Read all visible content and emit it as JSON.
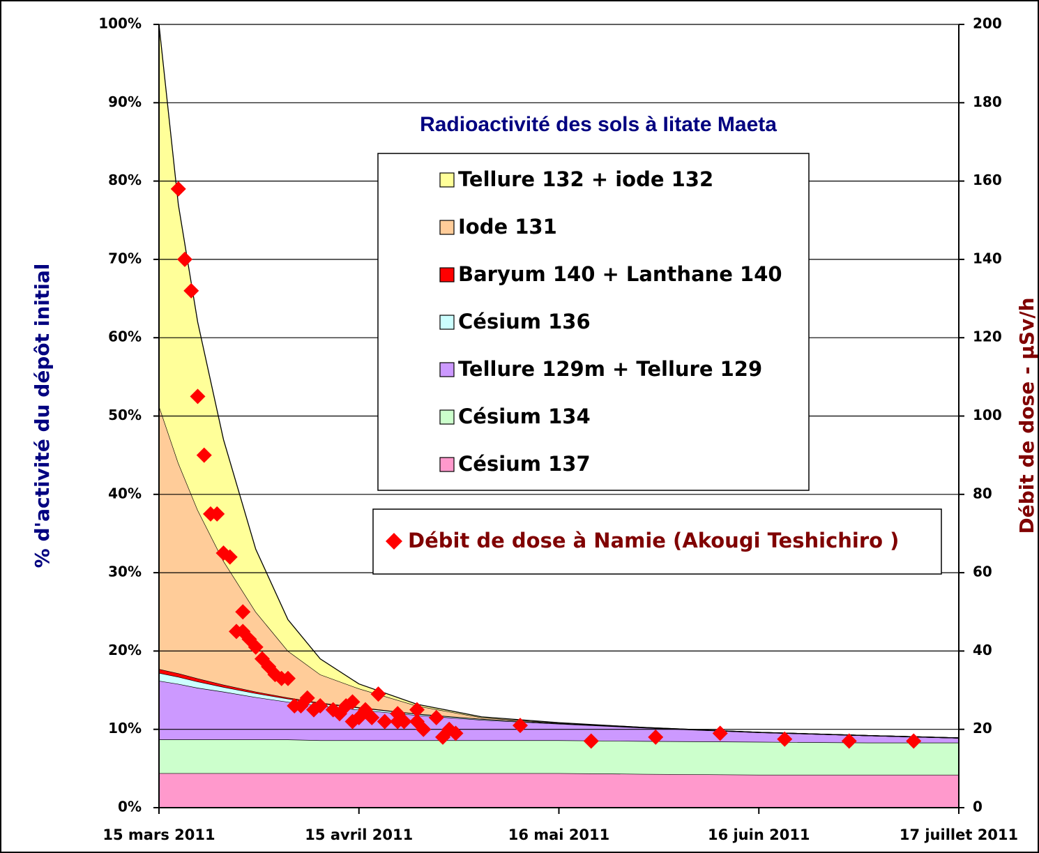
{
  "chart_data": {
    "type": "stacked_area",
    "title": "Radioactivité des sols à Iitate Maeta",
    "ylabel": "% d'activité du dépôt initial",
    "y2label": "Débit de dose - µSv/h",
    "xlim": [
      "2011-03-15",
      "2011-07-17"
    ],
    "xticks": [
      {
        "value": "2011-03-15",
        "label": "15 mars 2011"
      },
      {
        "value": "2011-04-15",
        "label": "15 avril 2011"
      },
      {
        "value": "2011-05-16",
        "label": "16 mai 2011"
      },
      {
        "value": "2011-06-16",
        "label": "16 juin 2011"
      },
      {
        "value": "2011-07-17",
        "label": "17 juillet 2011"
      }
    ],
    "ylim": [
      0,
      100
    ],
    "yticks": [
      {
        "value": 0,
        "label": "0%"
      },
      {
        "value": 10,
        "label": "10%"
      },
      {
        "value": 20,
        "label": "20%"
      },
      {
        "value": 30,
        "label": "30%"
      },
      {
        "value": 40,
        "label": "40%"
      },
      {
        "value": 50,
        "label": "50%"
      },
      {
        "value": 60,
        "label": "60%"
      },
      {
        "value": 70,
        "label": "70%"
      },
      {
        "value": 80,
        "label": "80%"
      },
      {
        "value": 90,
        "label": "90%"
      },
      {
        "value": 100,
        "label": "100%"
      }
    ],
    "y2lim": [
      0,
      200
    ],
    "y2ticks": [
      0,
      20,
      40,
      60,
      80,
      100,
      120,
      140,
      160,
      180,
      200
    ],
    "grid": true,
    "x": [
      "2011-03-15",
      "2011-03-18",
      "2011-03-21",
      "2011-03-25",
      "2011-03-30",
      "2011-04-04",
      "2011-04-09",
      "2011-04-15",
      "2011-04-24",
      "2011-05-04",
      "2011-05-16",
      "2011-05-29",
      "2011-06-16",
      "2011-07-03",
      "2011-07-17"
    ],
    "series": [
      {
        "name": "Césium 137",
        "color": "#ff99cc",
        "values": [
          4.4,
          4.4,
          4.4,
          4.4,
          4.4,
          4.4,
          4.4,
          4.4,
          4.4,
          4.4,
          4.4,
          4.3,
          4.2,
          4.2,
          4.2
        ]
      },
      {
        "name": "Césium 134",
        "color": "#ccffcc",
        "values": [
          4.3,
          4.3,
          4.3,
          4.3,
          4.3,
          4.3,
          4.2,
          4.2,
          4.2,
          4.2,
          4.2,
          4.2,
          4.2,
          4.1,
          4.1
        ]
      },
      {
        "name": "Tellure 129m + Tellure 129",
        "color": "#cc99ff",
        "values": [
          7.5,
          7.1,
          6.6,
          6.1,
          5.4,
          4.8,
          4.4,
          3.9,
          3.2,
          2.6,
          2.1,
          1.7,
          1.2,
          0.9,
          0.6
        ]
      },
      {
        "name": "Césium 136",
        "color": "#ccffff",
        "values": [
          1.0,
          0.9,
          0.8,
          0.6,
          0.5,
          0.4,
          0.3,
          0.25,
          0.15,
          0.1,
          0.05,
          0.02,
          0.01,
          0,
          0
        ]
      },
      {
        "name": "Baryum 140 + Lanthane 140",
        "color": "#ff0000",
        "values": [
          0.5,
          0.45,
          0.4,
          0.3,
          0.2,
          0.15,
          0.1,
          0.07,
          0.04,
          0.03,
          0.01,
          0,
          0,
          0,
          0
        ]
      },
      {
        "name": "Iode 131",
        "color": "#ffcc99",
        "values": [
          33.6,
          26.85,
          21.5,
          15.8,
          10.2,
          5.95,
          3.6,
          2.38,
          1.01,
          0.17,
          0.04,
          0.03,
          0.01,
          0,
          0
        ]
      },
      {
        "name": "Tellure 132 + iode 132",
        "color": "#ffff99",
        "values": [
          48.7,
          33,
          24,
          15.5,
          8,
          4,
          2,
          0.6,
          0.2,
          0.1,
          0.05,
          0,
          0,
          0,
          0
        ]
      }
    ],
    "scatter": {
      "type": "scatter",
      "name": "Débit de dose à Namie (Akougi Teshichiro )",
      "color": "#ff0000",
      "axis": "y2",
      "x": [
        "2011-03-18",
        "2011-03-19",
        "2011-03-20",
        "2011-03-21",
        "2011-03-22",
        "2011-03-23",
        "2011-03-24",
        "2011-03-25",
        "2011-03-26",
        "2011-03-28",
        "2011-03-27",
        "2011-03-28",
        "2011-03-29",
        "2011-03-30",
        "2011-03-31",
        "2011-04-01",
        "2011-04-02",
        "2011-04-03",
        "2011-04-04",
        "2011-04-05",
        "2011-04-06",
        "2011-04-07",
        "2011-04-08",
        "2011-04-09",
        "2011-04-11",
        "2011-04-12",
        "2011-04-13",
        "2011-04-14",
        "2011-04-14",
        "2011-04-15",
        "2011-04-16",
        "2011-04-17",
        "2011-04-18",
        "2011-04-19",
        "2011-04-21",
        "2011-04-21",
        "2011-04-22",
        "2011-04-24",
        "2011-04-24",
        "2011-04-25",
        "2011-04-27",
        "2011-04-28",
        "2011-04-29",
        "2011-04-30",
        "2011-05-10",
        "2011-05-21",
        "2011-05-31",
        "2011-06-10",
        "2011-06-20",
        "2011-06-30",
        "2011-07-10"
      ],
      "values": [
        158,
        140,
        132,
        105,
        90,
        75,
        75,
        65,
        64,
        50,
        45,
        45,
        43,
        41,
        38,
        36,
        34,
        33,
        33,
        26,
        26,
        28,
        25,
        26,
        25,
        24,
        26,
        27,
        22,
        23,
        25,
        23,
        29,
        22,
        22,
        24,
        22,
        22,
        25,
        20,
        23,
        18,
        20,
        19,
        21,
        17,
        18,
        19,
        17.5,
        17,
        17
      ]
    }
  }
}
